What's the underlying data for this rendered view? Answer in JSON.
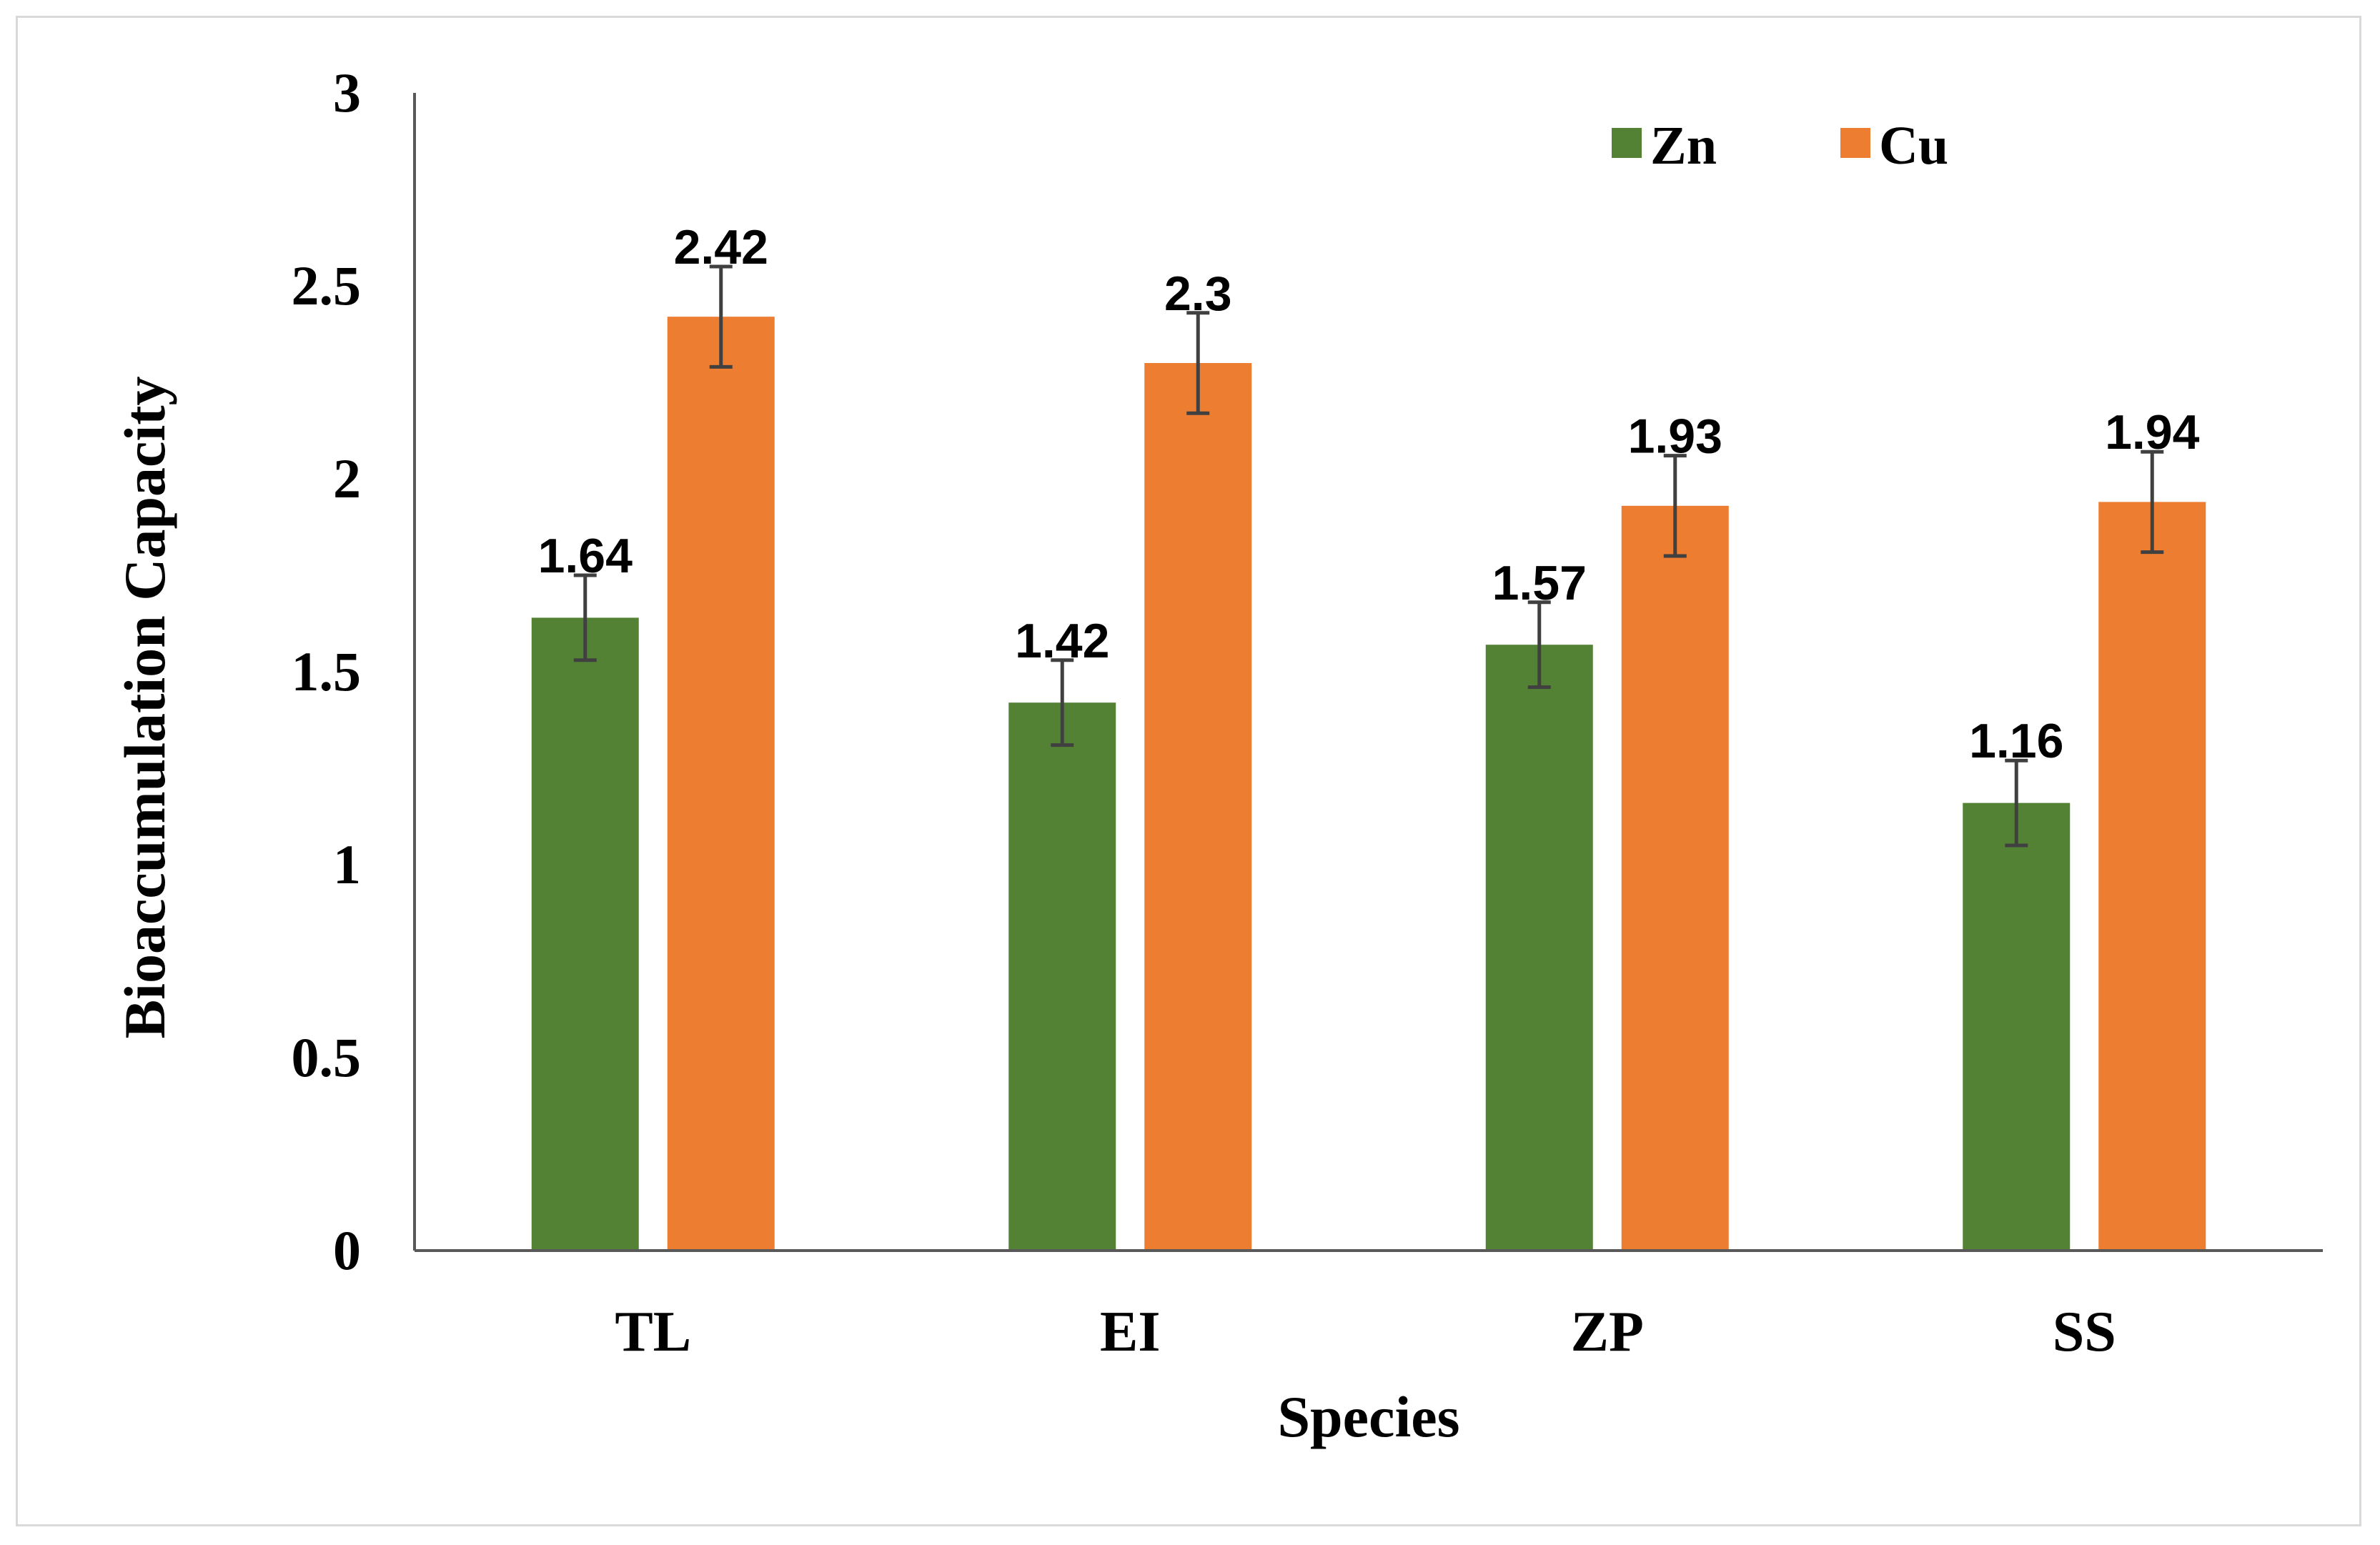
{
  "chart_data": {
    "type": "bar",
    "title": "",
    "xlabel": "Species",
    "ylabel": "Bioaccumulation  Capacity",
    "categories": [
      "TL",
      "EI",
      "ZP",
      "SS"
    ],
    "series": [
      {
        "name": "Zn",
        "color": "#548235",
        "values": [
          1.64,
          1.42,
          1.57,
          1.16
        ],
        "error": [
          0.11,
          0.11,
          0.11,
          0.11
        ],
        "labels": [
          "1.64",
          "1.42",
          "1.57",
          "1.16"
        ]
      },
      {
        "name": "Cu",
        "color": "#ed7d31",
        "values": [
          2.42,
          2.3,
          1.93,
          1.94
        ],
        "error": [
          0.13,
          0.13,
          0.13,
          0.13
        ],
        "labels": [
          "2.42",
          "2.3",
          "1.93",
          "1.94"
        ]
      }
    ],
    "ylim": [
      0,
      3
    ],
    "yticks": [
      "0",
      "0.5",
      "1",
      "1.5",
      "2",
      "2.5",
      "3"
    ],
    "grid": false,
    "legend_position": "top-right"
  }
}
